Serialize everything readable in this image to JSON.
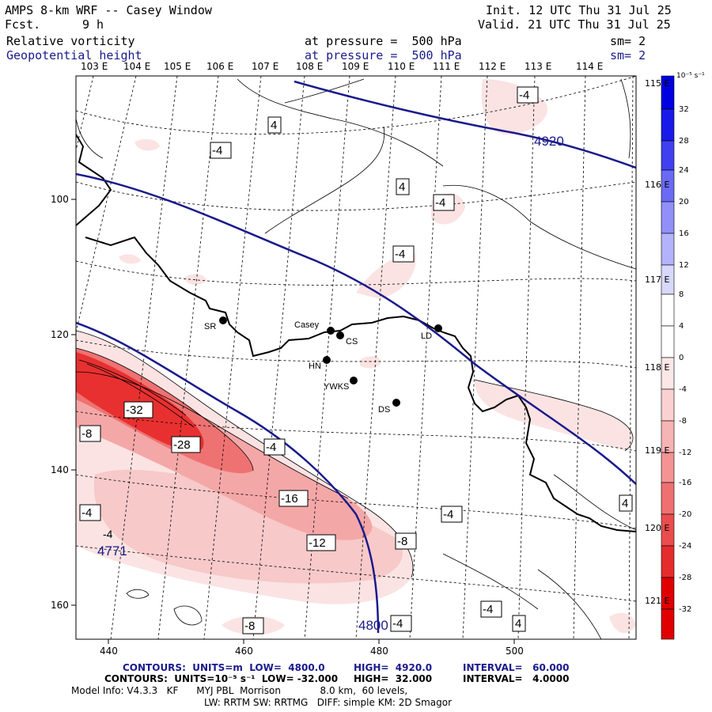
{
  "header": {
    "model": "AMPS 8-km WRF -- Casey Window",
    "fcst_label": "Fcst.",
    "fcst_value": "9 h",
    "init": "Init. 12 UTC Thu 31 Jul 25",
    "valid": "Valid. 21 UTC Thu 31 Jul 25",
    "field1": "Relative vorticity",
    "field1_level": "at pressure =  500 hPa",
    "field1_sm": "sm= 2",
    "field2": "Geopotential height",
    "field2_level": "at pressure =  500 hPa",
    "field2_sm": "sm= 2"
  },
  "longitudes": [
    "103 E",
    "104 E",
    "105 E",
    "106 E",
    "107 E",
    "108 E",
    "109 E",
    "110 E",
    "111 E",
    "112 E",
    "113 E",
    "114 E"
  ],
  "latitudes": [
    "115 E",
    "116 E",
    "117 E",
    "118 E",
    "119 E",
    "120 E",
    "121 E"
  ],
  "x_ticks": [
    "440",
    "460",
    "480",
    "500"
  ],
  "y_ticks": [
    "100",
    "120",
    "140",
    "160"
  ],
  "colorbar": {
    "unit": "10⁻⁵ s⁻¹",
    "labels": [
      "32",
      "28",
      "24",
      "20",
      "16",
      "12",
      "8",
      "4",
      "0",
      "-4",
      "-8",
      "-12",
      "-16",
      "-20",
      "-24",
      "-28",
      "-32"
    ]
  },
  "stations": [
    {
      "name": "SR"
    },
    {
      "name": "Casey"
    },
    {
      "name": "CS"
    },
    {
      "name": "HN"
    },
    {
      "name": "YWKS"
    },
    {
      "name": "DS"
    },
    {
      "name": "LD"
    }
  ],
  "height_labels": [
    "4920",
    "4800",
    "4771"
  ],
  "vorticity_labels": [
    "-4",
    "4",
    "-4",
    "-4",
    "4",
    "-4",
    "-4",
    "-32",
    "-28",
    "-8",
    "-4",
    "-16",
    "-4",
    "-4",
    "-12",
    "-8",
    "-8",
    "-4",
    "-4",
    "4",
    "4"
  ],
  "footer": {
    "line1_a": "CONTOURS:  UNITS=m  LOW=  4800.0",
    "line1_b": "HIGH=  4920.0",
    "line1_c": "INTERVAL=   60.000",
    "line2_a": "CONTOURS:  UNITS=10⁻⁵ s⁻¹  LOW= -32.000",
    "line2_b": "HIGH=  32.000",
    "line2_c": "INTERVAL=   4.0000",
    "line3": "Model Info: V4.3.3   KF      MYJ PBL  Morrison             8.0 km,  60 levels,",
    "line4": "LW: RRTM SW: RRTMG   DIFF: simple KM: 2D Smagor"
  },
  "colors": {
    "height_contour": "#1a1a8c",
    "coast": "#000000",
    "vort_neg_light": "#fbe3e3",
    "vort_neg_mid": "#f4a7a7",
    "vort_neg_strong": "#ee2a2a"
  }
}
